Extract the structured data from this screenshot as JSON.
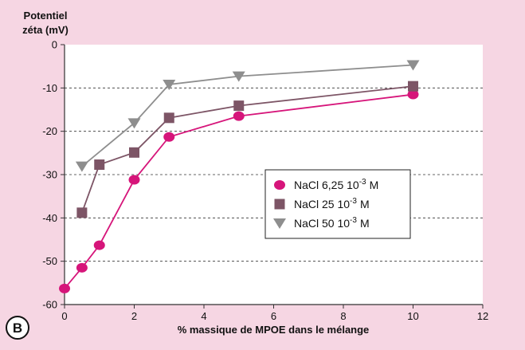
{
  "panel_label": "B",
  "chart_data": {
    "type": "line",
    "title": "",
    "ylabel_lines": [
      "Potentiel",
      "zéta (mV)"
    ],
    "xlabel": "% massique de MPOE dans le mélange",
    "xlim": [
      0,
      12
    ],
    "ylim": [
      -60,
      0
    ],
    "x_ticks": [
      "0",
      "2",
      "4",
      "6",
      "8",
      "10",
      "12"
    ],
    "y_ticks": [
      "0",
      "-10",
      "-20",
      "-30",
      "-40",
      "-50",
      "-60"
    ],
    "grid": "horizontal dashed",
    "legend_position": "center-right",
    "series": [
      {
        "name": "NaCl 6,25 10-3 M",
        "label_main": "NaCl 6,25 10",
        "label_exp": "-3",
        "label_unit": "M",
        "marker": "circle",
        "color": "#d6157a",
        "x": [
          0,
          0.5,
          1,
          2,
          3,
          5,
          10
        ],
        "y": [
          -56.3,
          -51.5,
          -46.3,
          -31.2,
          -21.3,
          -16.5,
          -11.5
        ]
      },
      {
        "name": "NaCl 25 10-3 M",
        "label_main": "NaCl 25 10",
        "label_exp": "-3",
        "label_unit": "M",
        "marker": "square",
        "color": "#7d5566",
        "x": [
          0.5,
          1,
          2,
          3,
          5,
          10
        ],
        "y": [
          -38.8,
          -27.7,
          -24.9,
          -16.9,
          -14.1,
          -9.6
        ]
      },
      {
        "name": "NaCl 50 10-3 M",
        "label_main": "NaCl 50 10",
        "label_exp": "-3",
        "label_unit": "M",
        "marker": "triangle-down",
        "color": "#8e8e8e",
        "x": [
          0.5,
          2,
          3,
          5,
          10
        ],
        "y": [
          -28.1,
          -18.1,
          -9.2,
          -7.3,
          -4.7
        ]
      }
    ]
  }
}
